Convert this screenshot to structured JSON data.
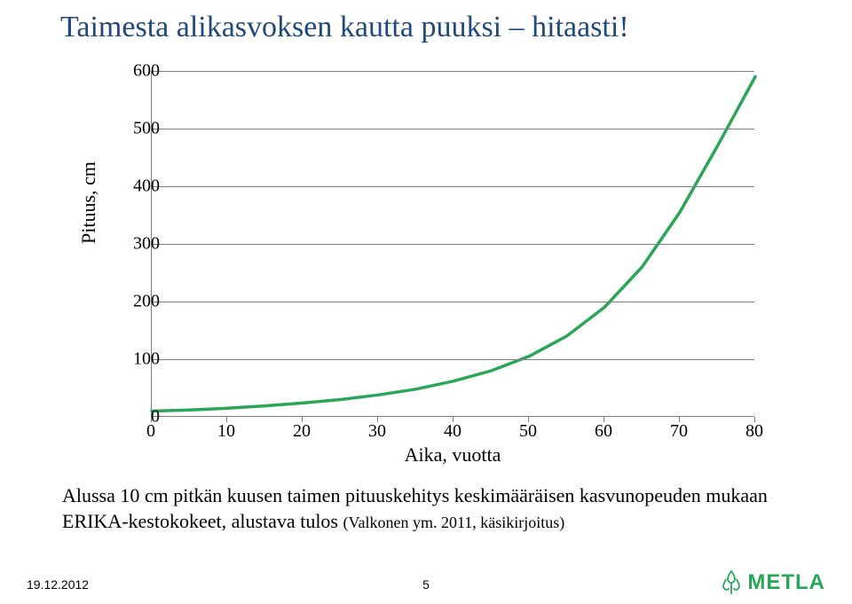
{
  "title": "Taimesta alikasvoksen kautta puuksi – hitaasti!",
  "chart": {
    "type": "line",
    "xlim": [
      0,
      80
    ],
    "ylim": [
      0,
      600
    ],
    "xtick_step": 10,
    "ytick_step": 100,
    "xticks": [
      0,
      10,
      20,
      30,
      40,
      50,
      60,
      70,
      80
    ],
    "yticks": [
      0,
      100,
      200,
      300,
      400,
      500,
      600
    ],
    "xlabel": "Aika, vuotta",
    "ylabel": "Pituus, cm",
    "line_color": "#2aa659",
    "line_width": 3.5,
    "grid_color": "#808080",
    "background_color": "#ffffff",
    "label_fontsize": 22,
    "tick_fontsize": 20,
    "series": {
      "x": [
        0,
        5,
        10,
        15,
        20,
        25,
        30,
        35,
        40,
        45,
        50,
        55,
        60,
        65,
        70,
        75,
        80
      ],
      "y": [
        10,
        12,
        15,
        19,
        24,
        30,
        38,
        48,
        62,
        80,
        105,
        140,
        190,
        260,
        355,
        470,
        590
      ]
    }
  },
  "caption_line1": "Alussa 10 cm pitkän kuusen taimen pituuskehitys keskimääräisen kasvunopeuden mukaan",
  "caption_line2": "ERIKA-kestokokeet, alustava tulos ",
  "caption_line2_sub": "(Valkonen ym. 2011, käsikirjoitus)",
  "footer": {
    "date": "19.12.2012",
    "page": "5",
    "logo_text": "METLA",
    "logo_color": "#2aa659"
  }
}
